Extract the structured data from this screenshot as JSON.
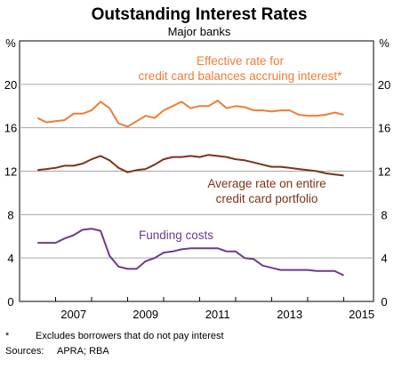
{
  "chart_data": {
    "type": "line",
    "title": "Outstanding Interest Rates",
    "subtitle": "Major banks",
    "y_unit_left": "%",
    "y_unit_right": "%",
    "ylim": [
      0,
      24
    ],
    "y_ticks": [
      0,
      4,
      8,
      12,
      16,
      20
    ],
    "x_range": [
      2006.0,
      2015.83
    ],
    "x_ticks": [
      2007,
      2009,
      2011,
      2013,
      2015
    ],
    "grid": "horizontal",
    "series": [
      {
        "key": "effective",
        "color": "#f07c36",
        "label_lines": [
          "Effective rate for",
          "credit card balances accruing interest*"
        ],
        "x": [
          2006.5,
          2006.75,
          2007.0,
          2007.25,
          2007.5,
          2007.75,
          2008.0,
          2008.25,
          2008.5,
          2008.75,
          2009.0,
          2009.25,
          2009.5,
          2009.75,
          2010.0,
          2010.25,
          2010.5,
          2010.75,
          2011.0,
          2011.25,
          2011.5,
          2011.75,
          2012.0,
          2012.25,
          2012.5,
          2012.75,
          2013.0,
          2013.25,
          2013.5,
          2013.75,
          2014.0,
          2014.25,
          2014.5,
          2014.75,
          2015.0
        ],
        "y": [
          16.9,
          16.5,
          16.6,
          16.7,
          17.3,
          17.3,
          17.6,
          18.4,
          17.8,
          16.4,
          16.1,
          16.6,
          17.1,
          16.9,
          17.6,
          18.0,
          18.4,
          17.8,
          18.0,
          18.0,
          18.5,
          17.8,
          18.0,
          17.9,
          17.6,
          17.6,
          17.5,
          17.6,
          17.6,
          17.2,
          17.1,
          17.1,
          17.2,
          17.4,
          17.2
        ]
      },
      {
        "key": "average",
        "color": "#7b3417",
        "label_lines": [
          "Average rate on entire",
          "credit card portfolio"
        ],
        "x": [
          2006.5,
          2006.75,
          2007.0,
          2007.25,
          2007.5,
          2007.75,
          2008.0,
          2008.25,
          2008.5,
          2008.75,
          2009.0,
          2009.25,
          2009.5,
          2009.75,
          2010.0,
          2010.25,
          2010.5,
          2010.75,
          2011.0,
          2011.25,
          2011.5,
          2011.75,
          2012.0,
          2012.25,
          2012.5,
          2012.75,
          2013.0,
          2013.25,
          2013.5,
          2013.75,
          2014.0,
          2014.25,
          2014.5,
          2014.75,
          2015.0
        ],
        "y": [
          12.1,
          12.2,
          12.3,
          12.5,
          12.5,
          12.7,
          13.1,
          13.4,
          13.0,
          12.3,
          11.9,
          12.1,
          12.2,
          12.6,
          13.1,
          13.3,
          13.3,
          13.4,
          13.3,
          13.5,
          13.4,
          13.3,
          13.1,
          13.0,
          12.8,
          12.6,
          12.4,
          12.4,
          12.3,
          12.2,
          12.1,
          12.0,
          11.8,
          11.7,
          11.6
        ]
      },
      {
        "key": "funding",
        "color": "#6e3b8e",
        "label_lines": [
          "Funding costs"
        ],
        "x": [
          2006.5,
          2006.75,
          2007.0,
          2007.25,
          2007.5,
          2007.75,
          2008.0,
          2008.25,
          2008.5,
          2008.75,
          2009.0,
          2009.25,
          2009.5,
          2009.75,
          2010.0,
          2010.25,
          2010.5,
          2010.75,
          2011.0,
          2011.25,
          2011.5,
          2011.75,
          2012.0,
          2012.25,
          2012.5,
          2012.75,
          2013.0,
          2013.25,
          2013.5,
          2013.75,
          2014.0,
          2014.25,
          2014.5,
          2014.75,
          2015.0
        ],
        "y": [
          5.4,
          5.4,
          5.4,
          5.8,
          6.1,
          6.6,
          6.7,
          6.5,
          4.2,
          3.2,
          3.0,
          3.0,
          3.7,
          4.0,
          4.5,
          4.6,
          4.8,
          4.9,
          4.9,
          4.9,
          4.9,
          4.6,
          4.6,
          4.0,
          3.9,
          3.3,
          3.1,
          2.9,
          2.9,
          2.9,
          2.9,
          2.8,
          2.8,
          2.8,
          2.4
        ]
      }
    ]
  },
  "footnotes": {
    "asterisk_mark": "*",
    "asterisk_text": "Excludes borrowers that do not pay interest",
    "sources_label": "Sources:",
    "sources_text": "APRA; RBA"
  }
}
